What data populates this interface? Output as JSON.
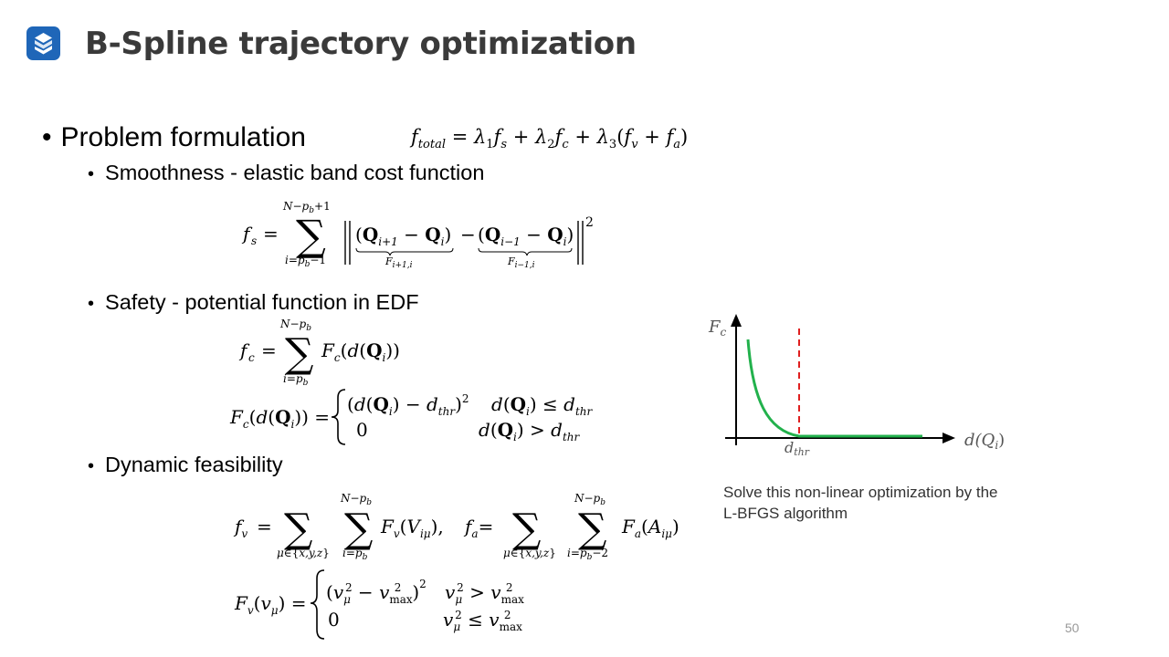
{
  "header": {
    "title": "B-Spline trajectory optimization"
  },
  "content": {
    "section_title": "Problem formulation",
    "bullets": [
      "Smoothness - elastic band cost function",
      "Safety - potential function in EDF",
      "Dynamic feasibility"
    ]
  },
  "chart": {
    "y_label": "F",
    "y_label_sub": "c",
    "x_label": "d(Q",
    "x_label_sub": "i",
    "x_label_close": ")",
    "threshold_label": "d",
    "threshold_label_sub": "thr",
    "curve_color": "#22b14c",
    "threshold_color": "#e02020",
    "axis_color": "#000000"
  },
  "note": "Solve this non-linear optimization by the L-BFGS algorithm",
  "page_number": "50",
  "colors": {
    "logo_bg": "#1f66b8",
    "title_text": "#3a3a3a"
  },
  "icons": {
    "logo": "brand-logo-icon"
  }
}
